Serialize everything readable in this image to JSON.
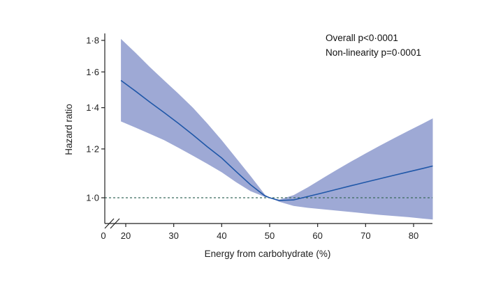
{
  "chart_data": {
    "type": "line",
    "xlabel": "Energy from carbohydrate (%)",
    "ylabel": "Hazard ratio",
    "x_ticks": [
      0,
      20,
      30,
      40,
      50,
      60,
      70,
      80
    ],
    "x_tick_labels": [
      "0",
      "20",
      "30",
      "40",
      "50",
      "60",
      "70",
      "80"
    ],
    "y_ticks": [
      1.0,
      1.2,
      1.4,
      1.6,
      1.8
    ],
    "y_tick_labels": [
      "1·0",
      "1·2",
      "1·4",
      "1·6",
      "1·8"
    ],
    "xlim": [
      0,
      84
    ],
    "ylim": [
      0.92,
      1.83
    ],
    "y_scale": "log",
    "x_axis_break": true,
    "reference_line": 1.0,
    "annotations": [
      "Overall p<0·0001",
      "Non-linearity p=0·0001"
    ],
    "colors": {
      "line": "#1f57a8",
      "band": "#9ea9d5",
      "reference": "#3a6a5c",
      "axis": "#222222"
    },
    "series": [
      {
        "x": [
          19,
          22,
          25,
          28,
          31,
          34,
          37,
          40,
          43,
          46,
          49,
          50,
          52,
          55,
          58,
          61,
          64,
          67,
          70,
          73,
          76,
          79,
          82,
          84
        ],
        "hr": [
          1.55,
          1.49,
          1.43,
          1.375,
          1.32,
          1.265,
          1.21,
          1.16,
          1.103,
          1.05,
          1.007,
          1.0,
          0.99,
          0.992,
          1.005,
          1.018,
          1.032,
          1.046,
          1.06,
          1.074,
          1.088,
          1.102,
          1.116,
          1.126
        ],
        "lower": [
          1.33,
          1.3,
          1.27,
          1.24,
          1.205,
          1.17,
          1.135,
          1.1,
          1.06,
          1.025,
          1.003,
          1.0,
          0.985,
          0.97,
          0.963,
          0.958,
          0.953,
          0.948,
          0.943,
          0.938,
          0.934,
          0.93,
          0.925,
          0.922
        ],
        "upper": [
          1.81,
          1.72,
          1.63,
          1.55,
          1.475,
          1.4,
          1.32,
          1.24,
          1.16,
          1.085,
          1.012,
          1.0,
          0.993,
          1.01,
          1.04,
          1.075,
          1.11,
          1.145,
          1.18,
          1.215,
          1.25,
          1.285,
          1.32,
          1.345
        ]
      }
    ]
  }
}
